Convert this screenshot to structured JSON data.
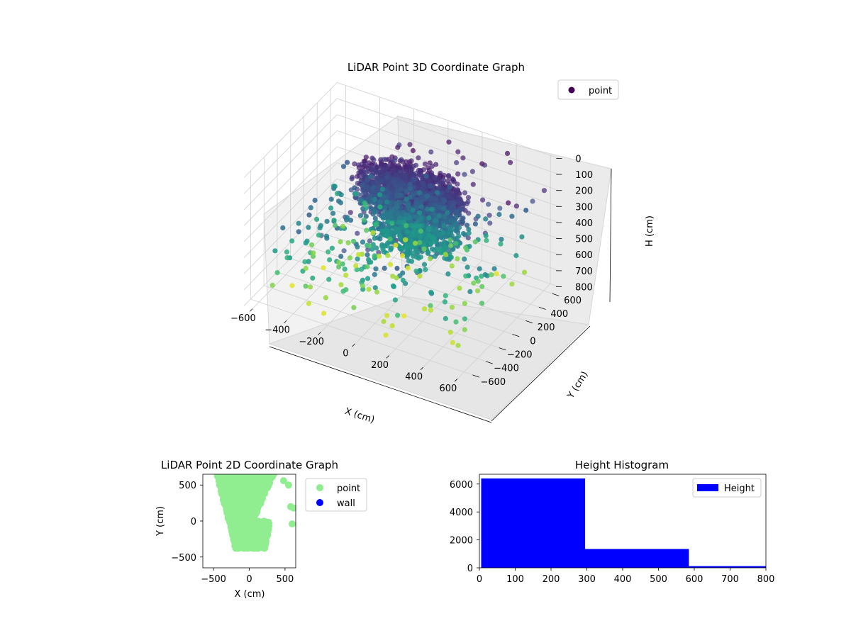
{
  "chart_data": [
    {
      "type": "scatter",
      "projection": "3d",
      "title": "LiDAR Point 3D Coordinate Graph",
      "xlabel": "X (cm)",
      "ylabel": "Y (cm)",
      "zlabel": "H (cm)",
      "xlim": [
        -650,
        650
      ],
      "ylim": [
        -700,
        700
      ],
      "zlim": [
        0,
        800
      ],
      "z_inverted": true,
      "x_ticks": [
        "−600",
        "−400",
        "−200",
        "0",
        "200",
        "400",
        "600"
      ],
      "x_tick_values": [
        -600,
        -400,
        -200,
        0,
        200,
        400,
        600
      ],
      "y_ticks": [
        "−600",
        "−400",
        "−200",
        "0",
        "200",
        "400",
        "600"
      ],
      "y_tick_values": [
        -600,
        -400,
        -200,
        0,
        200,
        400,
        600
      ],
      "z_ticks": [
        "0",
        "100",
        "200",
        "300",
        "400",
        "500",
        "600",
        "700",
        "800"
      ],
      "z_tick_values": [
        0,
        100,
        200,
        300,
        400,
        500,
        600,
        700,
        800
      ],
      "colormap": "viridis",
      "legend": {
        "position": "top-right",
        "entries": [
          {
            "label": "point",
            "color": "#440154"
          }
        ]
      },
      "grid": true
    },
    {
      "type": "scatter",
      "title": "LiDAR Point 2D Coordinate Graph",
      "xlabel": "X (cm)",
      "ylabel": "Y (cm)",
      "xlim": [
        -650,
        650
      ],
      "ylim": [
        -650,
        650
      ],
      "x_ticks": [
        "−500",
        "0",
        "500"
      ],
      "x_tick_values": [
        -500,
        0,
        500
      ],
      "y_ticks": [
        "500",
        "0",
        "−500"
      ],
      "y_tick_values": [
        500,
        0,
        -500
      ],
      "series": [
        {
          "name": "point",
          "color": "#90ee90"
        },
        {
          "name": "wall",
          "color": "#0000ff"
        }
      ],
      "legend": {
        "position": "outside-right"
      }
    },
    {
      "type": "bar",
      "title": "Height Histogram",
      "xlim": [
        0,
        800
      ],
      "ylim": [
        0,
        6700
      ],
      "bins": [
        {
          "start": 5,
          "end": 295,
          "count": 6400
        },
        {
          "start": 295,
          "end": 585,
          "count": 1350
        },
        {
          "start": 585,
          "end": 800,
          "count": 120
        }
      ],
      "x_ticks": [
        "0",
        "100",
        "200",
        "300",
        "400",
        "500",
        "600",
        "700",
        "800"
      ],
      "x_tick_values": [
        0,
        100,
        200,
        300,
        400,
        500,
        600,
        700,
        800
      ],
      "y_ticks": [
        "0",
        "2000",
        "4000",
        "6000"
      ],
      "y_tick_values": [
        0,
        2000,
        4000,
        6000
      ],
      "series": [
        {
          "name": "Height",
          "color": "#0000ff"
        }
      ],
      "legend": {
        "position": "top-right"
      }
    }
  ]
}
